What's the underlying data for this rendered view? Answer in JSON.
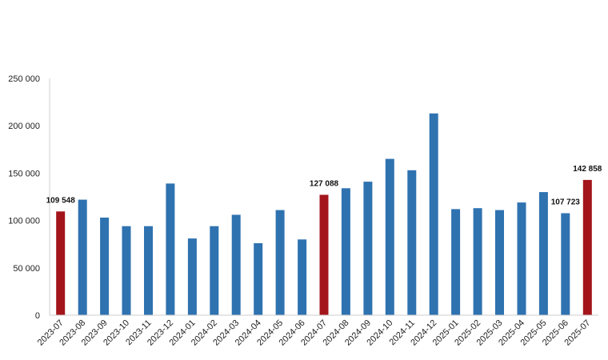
{
  "chart_data": {
    "type": "bar",
    "title": "",
    "xlabel": "",
    "ylabel": "",
    "ylim": [
      0,
      250000
    ],
    "yticks": [
      0,
      50000,
      100000,
      150000,
      200000,
      250000
    ],
    "ytick_labels": [
      "0",
      "50 000",
      "100 000",
      "150 000",
      "200 000",
      "250 000"
    ],
    "grid": false,
    "colors": {
      "default": "#2f72b0",
      "highlight": "#a3151b"
    },
    "categories": [
      "2023-07",
      "2023-08",
      "2023-09",
      "2023-10",
      "2023-11",
      "2023-12",
      "2024-01",
      "2024-02",
      "2024-03",
      "2024-04",
      "2024-05",
      "2024-06",
      "2024-07",
      "2024-08",
      "2024-09",
      "2024-10",
      "2024-11",
      "2024-12",
      "2025-01",
      "2025-02",
      "2025-03",
      "2025-04",
      "2025-05",
      "2025-06",
      "2025-07"
    ],
    "values": [
      109548,
      122000,
      103000,
      94000,
      94000,
      139000,
      81000,
      94000,
      106000,
      76000,
      111000,
      80000,
      127088,
      134000,
      141000,
      165000,
      153000,
      213000,
      112000,
      113000,
      111000,
      119000,
      130000,
      107723,
      142858
    ],
    "highlighted": [
      true,
      false,
      false,
      false,
      false,
      false,
      false,
      false,
      false,
      false,
      false,
      false,
      true,
      false,
      false,
      false,
      false,
      false,
      false,
      false,
      false,
      false,
      false,
      false,
      true
    ],
    "data_labels": [
      {
        "index": 0,
        "text": "109 548"
      },
      {
        "index": 12,
        "text": "127 088"
      },
      {
        "index": 23,
        "text": "107 723"
      },
      {
        "index": 24,
        "text": "142 858"
      }
    ]
  }
}
